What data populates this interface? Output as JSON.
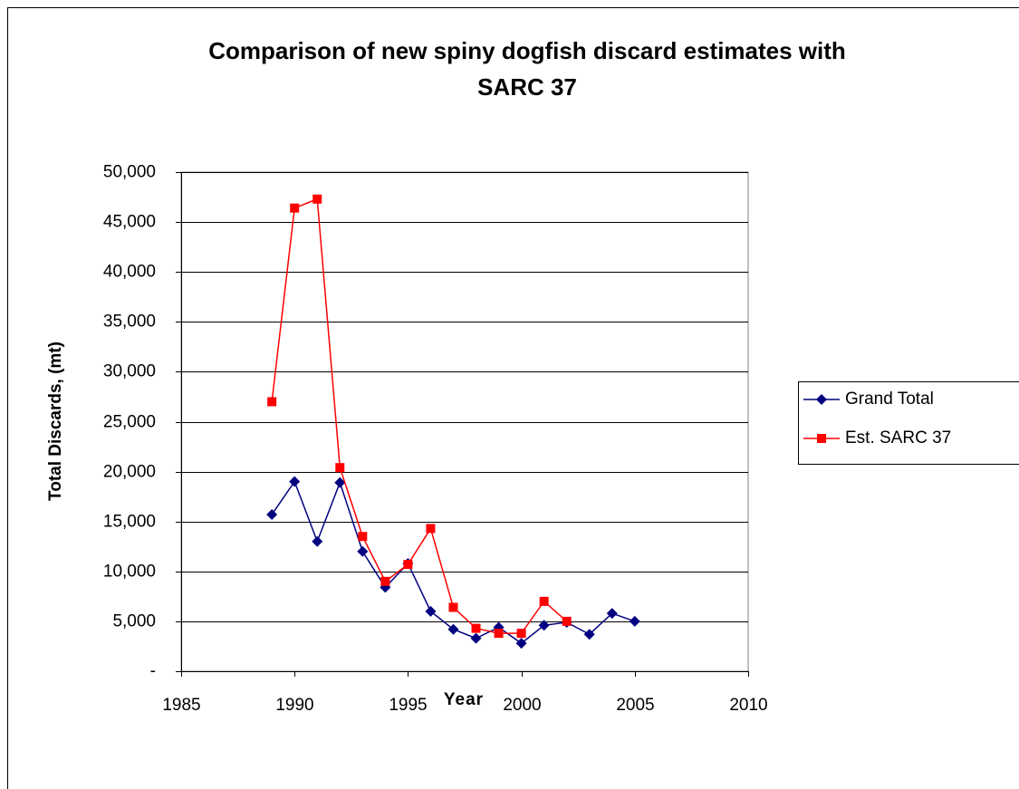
{
  "chart_data": {
    "type": "line",
    "title": [
      "Comparison of new spiny dogfish discard estimates with",
      "SARC 37"
    ],
    "x_label": "Year",
    "y_label": "Total Discards, (mt)",
    "x": [
      1989,
      1990,
      1991,
      1992,
      1993,
      1994,
      1995,
      1996,
      1997,
      1998,
      1999,
      2000,
      2001,
      2002,
      2003,
      2004,
      2005
    ],
    "series": [
      {
        "name": "Grand Total",
        "color": "#000080",
        "marker": "diamond",
        "values": [
          15700,
          19000,
          13000,
          18900,
          12000,
          8400,
          10800,
          6000,
          4200,
          3300,
          4400,
          2800,
          4600,
          4900,
          3700,
          5800,
          5000
        ]
      },
      {
        "name": "Est. SARC 37",
        "color": "#ff0000",
        "marker": "square",
        "values": [
          27000,
          46400,
          47300,
          20400,
          13500,
          9000,
          10700,
          14300,
          6400,
          4300,
          3800,
          3800,
          7000,
          5000,
          null,
          null,
          null
        ]
      }
    ],
    "xlim": [
      1985,
      2010
    ],
    "xticks": [
      1985,
      1990,
      1995,
      2000,
      2005,
      2010
    ],
    "ylim": [
      0,
      50000
    ],
    "yticks": [
      {
        "value": 0,
        "label": "-"
      },
      {
        "value": 5000,
        "label": "5,000"
      },
      {
        "value": 10000,
        "label": "10,000"
      },
      {
        "value": 15000,
        "label": "15,000"
      },
      {
        "value": 20000,
        "label": "20,000"
      },
      {
        "value": 25000,
        "label": "25,000"
      },
      {
        "value": 30000,
        "label": "30,000"
      },
      {
        "value": 35000,
        "label": "35,000"
      },
      {
        "value": 40000,
        "label": "40,000"
      },
      {
        "value": 45000,
        "label": "45,000"
      },
      {
        "value": 50000,
        "label": "50,000"
      }
    ],
    "grid": true,
    "legend": "right"
  }
}
